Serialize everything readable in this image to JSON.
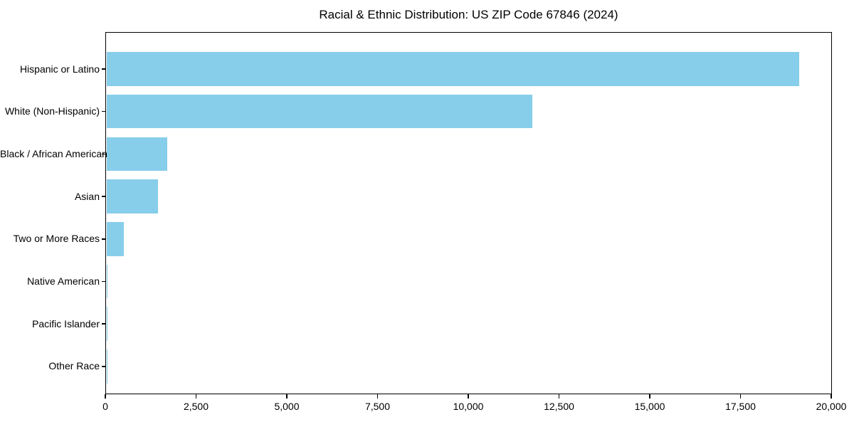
{
  "chart_data": {
    "type": "bar",
    "orientation": "horizontal",
    "title": "Racial & Ethnic Distribution: US ZIP Code 67846 (2024)",
    "categories": [
      "Hispanic or Latino",
      "White (Non-Hispanic)",
      "Black / African American",
      "Asian",
      "Two or More Races",
      "Native American",
      "Pacific Islander",
      "Other Race"
    ],
    "values": [
      19080,
      11740,
      1680,
      1420,
      475,
      30,
      20,
      10
    ],
    "xlabel": "",
    "ylabel": "",
    "xlim": [
      0,
      20000
    ],
    "x_ticks": [
      0,
      2500,
      5000,
      7500,
      10000,
      12500,
      15000,
      17500,
      20000
    ],
    "x_tick_labels": [
      "0",
      "2,500",
      "5,000",
      "7,500",
      "10,000",
      "12,500",
      "15,000",
      "17,500",
      "20,000"
    ],
    "bar_color": "#87CEEB",
    "background_color": "#ffffff",
    "axis_color": "#000000",
    "grid": false,
    "legend": null
  }
}
